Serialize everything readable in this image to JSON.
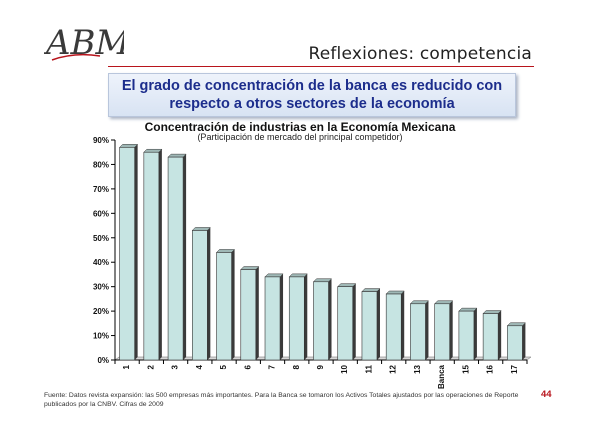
{
  "logo": {
    "text": "ABM"
  },
  "slide": {
    "title": "Reflexiones: competencia",
    "page_number": "44"
  },
  "callout": {
    "line1": "El grado de concentración de la banca es reducido con",
    "line2": "respecto a otros sectores de la economía"
  },
  "source": "Fuente: Datos revista expansión: las 500 empresas más importantes. Para la Banca se tomaron los Activos Totales ajustados por las operaciones de Reporte publicados por la CNBV. Cifras de 2009",
  "colors": {
    "bar": "#c6e4e2",
    "bar_side": "#3a3a3a",
    "accent": "#b8141c",
    "callout_text": "#1c2d8c"
  },
  "chart_data": {
    "type": "bar",
    "title": "Concentración de industrias en la Economía Mexicana",
    "subtitle": "(Participación de mercado del principal competidor)",
    "categories": [
      "1",
      "2",
      "3",
      "4",
      "5",
      "6",
      "7",
      "8",
      "9",
      "10",
      "11",
      "12",
      "13",
      "Banca",
      "15",
      "16",
      "17"
    ],
    "values": [
      87,
      85,
      83,
      53,
      44,
      37,
      34,
      34,
      32,
      30,
      28,
      27,
      23,
      23,
      20,
      19,
      14
    ],
    "ylim": [
      0,
      90
    ],
    "yticks": [
      "0%",
      "10%",
      "20%",
      "30%",
      "40%",
      "50%",
      "60%",
      "70%",
      "80%",
      "90%"
    ],
    "grid": false,
    "legend": "none"
  }
}
